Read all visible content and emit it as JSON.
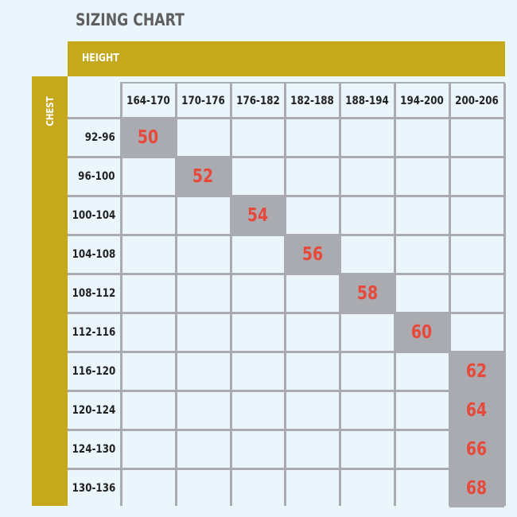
{
  "chart_data": {
    "type": "table",
    "title": "SIZING CHART",
    "column_header_label": "HEIGHT",
    "row_header_label": "CHEST",
    "height_ranges": [
      "164-170",
      "170-176",
      "176-182",
      "182-188",
      "188-194",
      "194-200",
      "200-206"
    ],
    "chest_ranges": [
      "92-96",
      "96-100",
      "100-104",
      "104-108",
      "108-112",
      "112-116",
      "116-120",
      "120-124",
      "124-130",
      "130-136"
    ],
    "sizes": [
      {
        "chest": "92-96",
        "height": "164-170",
        "size": "50"
      },
      {
        "chest": "96-100",
        "height": "170-176",
        "size": "52"
      },
      {
        "chest": "100-104",
        "height": "176-182",
        "size": "54"
      },
      {
        "chest": "104-108",
        "height": "182-188",
        "size": "56"
      },
      {
        "chest": "108-112",
        "height": "188-194",
        "size": "58"
      },
      {
        "chest": "112-116",
        "height": "194-200",
        "size": "60"
      },
      {
        "chest": "116-120",
        "height": "200-206",
        "size": "62"
      },
      {
        "chest": "120-124",
        "height": "200-206",
        "size": "64"
      },
      {
        "chest": "124-130",
        "height": "200-206",
        "size": "66"
      },
      {
        "chest": "130-136",
        "height": "200-206",
        "size": "68"
      }
    ]
  },
  "colors": {
    "panel_background": "#eaf5fc",
    "header_bar": "#c6a81d",
    "highlight_cell": "#a9abb0",
    "size_text": "#e8483a",
    "grid_line": "#a9abb0"
  }
}
